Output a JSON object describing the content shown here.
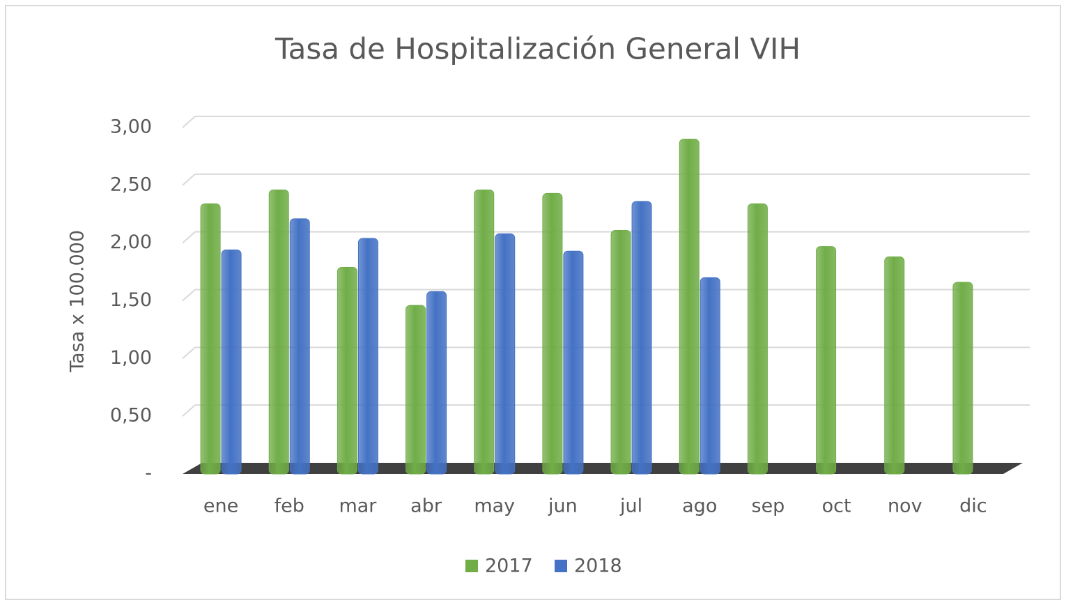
{
  "chart_data": {
    "type": "bar",
    "title": "Tasa de Hospitalización General VIH",
    "y_label": "Tasa x 100.000",
    "categories": [
      "ene",
      "feb",
      "mar",
      "abr",
      "may",
      "jun",
      "jul",
      "ago",
      "sep",
      "oct",
      "nov",
      "dic"
    ],
    "series": [
      {
        "name": "2017",
        "color": "#70ad47",
        "values": [
          2.34,
          2.46,
          1.79,
          1.46,
          2.46,
          2.43,
          2.11,
          2.9,
          2.34,
          1.97,
          1.88,
          1.66
        ]
      },
      {
        "name": "2018",
        "color": "#4472c4",
        "values": [
          1.94,
          2.21,
          2.04,
          1.58,
          2.08,
          1.93,
          2.36,
          1.7,
          null,
          null,
          null,
          null
        ]
      }
    ],
    "ylim": [
      0,
      3
    ],
    "yticks": [
      {
        "value": 0,
        "label": "-"
      },
      {
        "value": 0.5,
        "label": "0,50"
      },
      {
        "value": 1,
        "label": "1,00"
      },
      {
        "value": 1.5,
        "label": "1,50"
      },
      {
        "value": 2,
        "label": "2,00"
      },
      {
        "value": 2.5,
        "label": "2,50"
      },
      {
        "value": 3,
        "label": "3,00"
      }
    ],
    "grid": true,
    "legend": "bottom"
  }
}
